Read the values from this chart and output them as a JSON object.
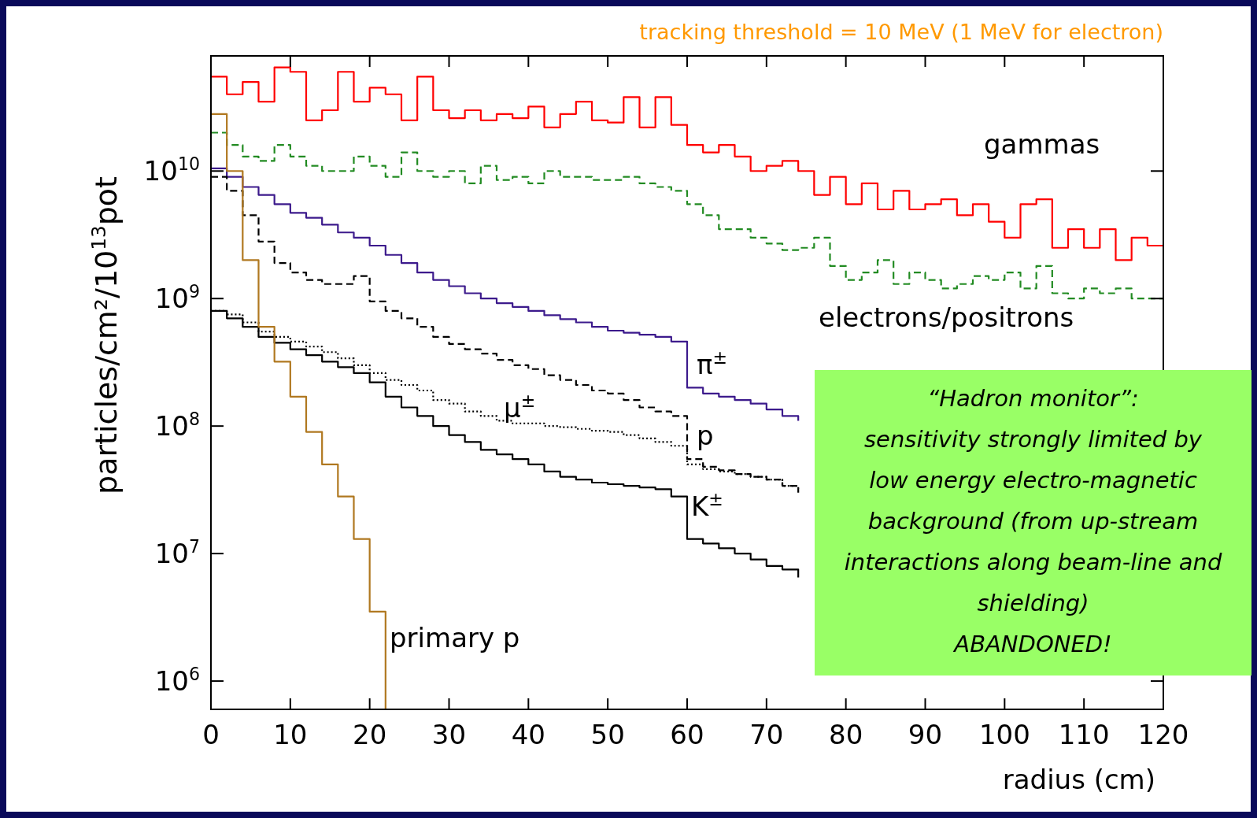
{
  "chart_data": {
    "type": "step",
    "title": "tracking threshold = 10 MeV (1 MeV for electron)",
    "xlabel": "radius (cm)",
    "ylabel": "particles/cm²/10$^{13}$pot",
    "x": [
      0,
      2,
      4,
      6,
      8,
      10,
      12,
      14,
      16,
      18,
      20,
      22,
      24,
      26,
      28,
      30,
      32,
      34,
      36,
      38,
      40,
      42,
      44,
      46,
      48,
      50,
      52,
      54,
      56,
      58,
      60,
      62,
      64,
      66,
      68,
      70,
      72,
      74,
      76,
      78,
      80,
      82,
      84,
      86,
      88,
      90,
      92,
      94,
      96,
      98,
      100,
      102,
      104,
      106,
      108,
      110,
      112,
      114,
      116,
      118,
      120
    ],
    "xlim": [
      0,
      120
    ],
    "xticks": [
      0,
      10,
      20,
      30,
      40,
      50,
      60,
      70,
      80,
      90,
      100,
      110,
      120
    ],
    "log": "y",
    "ylim": [
      600000,
      80000000000
    ],
    "yticks": [
      {
        "value": 1000000.0,
        "label": "10$^{6}$"
      },
      {
        "value": 10000000.0,
        "label": "10$^{7}$"
      },
      {
        "value": 100000000.0,
        "label": "10$^{8}$"
      },
      {
        "value": 1000000000.0,
        "label": "10$^{9}$"
      },
      {
        "value": 10000000000.0,
        "label": "10$^{10}$"
      }
    ],
    "series": [
      {
        "name": "gammas",
        "color": "#ff0000",
        "line_style": "solid",
        "values": [
          55000000000.0,
          40000000000.0,
          50000000000.0,
          35000000000.0,
          65000000000.0,
          60000000000.0,
          25000000000.0,
          30000000000.0,
          60000000000.0,
          35000000000.0,
          45000000000.0,
          40000000000.0,
          25000000000.0,
          55000000000.0,
          30000000000.0,
          26000000000.0,
          30000000000.0,
          25000000000.0,
          28000000000.0,
          26000000000.0,
          32000000000.0,
          22000000000.0,
          28000000000.0,
          35000000000.0,
          25000000000.0,
          24000000000.0,
          38000000000.0,
          22000000000.0,
          38000000000.0,
          23000000000.0,
          16000000000.0,
          14000000000.0,
          16000000000.0,
          13000000000.0,
          10000000000.0,
          11000000000.0,
          12000000000.0,
          10000000000.0,
          6500000000.0,
          9000000000.0,
          5500000000.0,
          8000000000.0,
          5000000000.0,
          7000000000.0,
          5000000000.0,
          5500000000.0,
          6000000000.0,
          4500000000.0,
          5500000000.0,
          4000000000.0,
          3000000000.0,
          5500000000.0,
          6000000000.0,
          2500000000.0,
          3500000000.0,
          2500000000.0,
          3500000000.0,
          2000000000.0,
          3000000000.0,
          2600000000.0,
          2600000000.0
        ]
      },
      {
        "name": "electrons/positrons",
        "color": "#228b22",
        "line_style": "dashed",
        "values": [
          20000000000.0,
          16000000000.0,
          13000000000.0,
          12000000000.0,
          16000000000.0,
          13000000000.0,
          11000000000.0,
          10000000000.0,
          10000000000.0,
          13000000000.0,
          11000000000.0,
          9000000000.0,
          14000000000.0,
          10000000000.0,
          9000000000.0,
          10000000000.0,
          8000000000.0,
          11000000000.0,
          8500000000.0,
          9000000000.0,
          8000000000.0,
          10000000000.0,
          9000000000.0,
          9000000000.0,
          8500000000.0,
          8500000000.0,
          9000000000.0,
          8000000000.0,
          7500000000.0,
          7000000000.0,
          5500000000.0,
          4500000000.0,
          3500000000.0,
          3500000000.0,
          3000000000.0,
          2700000000.0,
          2400000000.0,
          2500000000.0,
          3000000000.0,
          1800000000.0,
          1400000000.0,
          1600000000.0,
          2000000000.0,
          1300000000.0,
          1600000000.0,
          1400000000.0,
          1200000000.0,
          1300000000.0,
          1500000000.0,
          1400000000.0,
          1600000000.0,
          1200000000.0,
          1800000000.0,
          1100000000.0,
          1000000000.0,
          1200000000.0,
          1100000000.0,
          1200000000.0,
          1000000000.0,
          1000000000.0,
          1000000000.0
        ]
      },
      {
        "name": "π$^{±}$",
        "color": "#3c1a8c",
        "line_style": "solid",
        "values": [
          10500000000.0,
          9000000000.0,
          7500000000.0,
          6500000000.0,
          5500000000.0,
          4700000000.0,
          4300000000.0,
          3800000000.0,
          3300000000.0,
          3000000000.0,
          2600000000.0,
          2200000000.0,
          1900000000.0,
          1600000000.0,
          1400000000.0,
          1250000000.0,
          1100000000.0,
          1000000000.0,
          920000000.0,
          860000000.0,
          800000000.0,
          740000000.0,
          690000000.0,
          650000000.0,
          600000000.0,
          560000000.0,
          540000000.0,
          520000000.0,
          500000000.0,
          460000000.0,
          200000000.0,
          180000000.0,
          170000000.0,
          160000000.0,
          150000000.0,
          135000000.0,
          120000000.0,
          110000000.0,
          null,
          null,
          null,
          null,
          null,
          null,
          null,
          null,
          null,
          null,
          null,
          null,
          null,
          null,
          null,
          null,
          null,
          null,
          null,
          null,
          null,
          null,
          null
        ]
      },
      {
        "name": "p",
        "color": "#000000",
        "line_style": "dashed",
        "values": [
          9000000000.0,
          7000000000.0,
          4500000000.0,
          2800000000.0,
          1900000000.0,
          1600000000.0,
          1400000000.0,
          1300000000.0,
          1300000000.0,
          1500000000.0,
          950000000.0,
          800000000.0,
          700000000.0,
          600000000.0,
          500000000.0,
          440000000.0,
          400000000.0,
          370000000.0,
          330000000.0,
          300000000.0,
          280000000.0,
          250000000.0,
          230000000.0,
          210000000.0,
          190000000.0,
          180000000.0,
          160000000.0,
          140000000.0,
          130000000.0,
          120000000.0,
          55000000.0,
          48000000.0,
          45000000.0,
          42000000.0,
          40000000.0,
          38000000.0,
          34000000.0,
          30000000.0,
          null,
          null,
          null,
          null,
          null,
          null,
          null,
          null,
          null,
          null,
          null,
          null,
          null,
          null,
          null,
          null,
          null,
          null,
          null,
          null,
          null,
          null,
          null
        ]
      },
      {
        "name": "μ$^{±}$",
        "color": "#000000",
        "line_style": "dotted",
        "values": [
          800000000.0,
          750000000.0,
          650000000.0,
          550000000.0,
          500000000.0,
          460000000.0,
          420000000.0,
          380000000.0,
          340000000.0,
          300000000.0,
          260000000.0,
          230000000.0,
          210000000.0,
          190000000.0,
          160000000.0,
          150000000.0,
          130000000.0,
          120000000.0,
          110000000.0,
          105000000.0,
          105000000.0,
          100000000.0,
          98000000.0,
          95000000.0,
          92000000.0,
          90000000.0,
          85000000.0,
          80000000.0,
          75000000.0,
          70000000.0,
          50000000.0,
          46000000.0,
          44000000.0,
          42000000.0,
          40000000.0,
          38000000.0,
          34000000.0,
          32000000.0,
          null,
          null,
          null,
          null,
          null,
          null,
          null,
          null,
          null,
          null,
          null,
          null,
          null,
          null,
          null,
          null,
          null,
          null,
          null,
          null,
          null,
          null,
          null
        ]
      },
      {
        "name": "K$^{±}$",
        "color": "#000000",
        "line_style": "solid",
        "values": [
          800000000.0,
          700000000.0,
          600000000.0,
          500000000.0,
          450000000.0,
          400000000.0,
          360000000.0,
          320000000.0,
          290000000.0,
          260000000.0,
          220000000.0,
          170000000.0,
          140000000.0,
          120000000.0,
          100000000.0,
          85000000.0,
          75000000.0,
          65000000.0,
          60000000.0,
          55000000.0,
          50000000.0,
          44000000.0,
          40000000.0,
          38000000.0,
          36000000.0,
          35000000.0,
          34000000.0,
          33000000.0,
          32000000.0,
          28000000.0,
          13000000.0,
          12000000.0,
          11000000.0,
          10000000.0,
          9000000.0,
          8000000.0,
          7500000.0,
          6500000.0,
          null,
          null,
          null,
          null,
          null,
          null,
          null,
          null,
          null,
          null,
          null,
          null,
          null,
          null,
          null,
          null,
          null,
          null,
          null,
          null,
          null,
          null,
          null
        ]
      },
      {
        "name": "primary p",
        "color": "#b07820",
        "line_style": "solid",
        "values": [
          28000000000.0,
          10000000000.0,
          2000000000.0,
          600000000.0,
          320000000.0,
          170000000.0,
          90000000.0,
          50000000.0,
          28000000.0,
          13000000.0,
          3500000.0,
          600000.0,
          null,
          null,
          null,
          null,
          null,
          null,
          null,
          null,
          null,
          null,
          null,
          null,
          null,
          null,
          null,
          null,
          null,
          null,
          null,
          null,
          null,
          null,
          null,
          null,
          null,
          null,
          null,
          null,
          null,
          null,
          null,
          null,
          null,
          null,
          null,
          null,
          null,
          null,
          null,
          null,
          null,
          null,
          null,
          null,
          null,
          null,
          null,
          null,
          null
        ]
      }
    ],
    "annotations": [
      "“Hadron monitor”:",
      "sensitivity strongly limited by",
      "low energy electro-magnetic",
      "background (from up-stream",
      "interactions along beam-line and",
      "shielding)",
      "ABANDONED!"
    ]
  }
}
